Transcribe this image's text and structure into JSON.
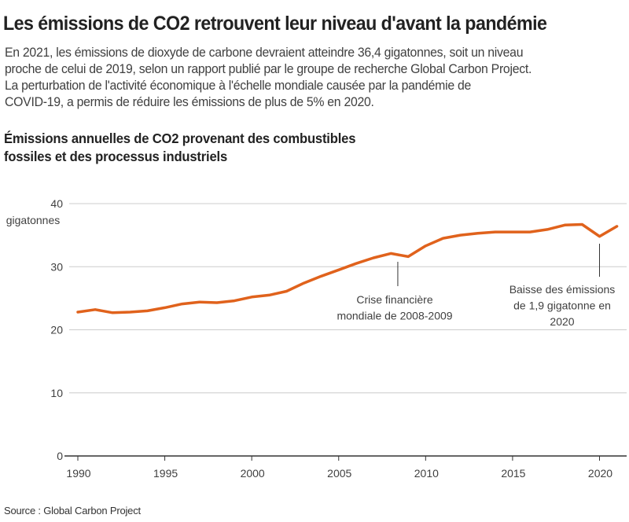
{
  "header": {
    "title": "Les émissions de CO2 retrouvent leur niveau d'avant la pandémie",
    "subtitle_lines": [
      "En 2021, les émissions de dioxyde de carbone devraient atteindre 36,4 gigatonnes, soit un niveau",
      "proche de celui de 2019, selon un rapport publié par le groupe de recherche Global Carbon Project.",
      "La perturbation de l'activité économique à l'échelle mondiale causée par la pandémie de",
      "COVID-19, a permis de réduire les émissions de plus de 5% en 2020."
    ]
  },
  "footer": {
    "source": "Source : Global Carbon Project"
  },
  "colors": {
    "line": "#e0621c",
    "grid": "#cccccc",
    "axis": "#333333",
    "text": "#404040"
  },
  "chart_data": {
    "type": "line",
    "title_lines": [
      "Émissions annuelles  de CO2 provenant des combustibles",
      "fossiles et des processus industriels"
    ],
    "xlabel": "",
    "ylabel": "gigatonnes",
    "xlim": [
      1990,
      2021
    ],
    "ylim": [
      0,
      40
    ],
    "yticks": [
      0,
      10,
      20,
      30,
      40
    ],
    "ytick_labels": [
      "0",
      "10",
      "20",
      "30",
      "40"
    ],
    "xticks": [
      1990,
      1995,
      2000,
      2005,
      2010,
      2015,
      2020
    ],
    "xtick_labels": [
      "1990",
      "1995",
      "2000",
      "2005",
      "2010",
      "2015",
      "2020"
    ],
    "grid": "horizontal",
    "legend": "none",
    "series": [
      {
        "name": "Émissions de CO2 (gigatonnes)",
        "x": [
          1990,
          1991,
          1992,
          1993,
          1994,
          1995,
          1996,
          1997,
          1998,
          1999,
          2000,
          2001,
          2002,
          2003,
          2004,
          2005,
          2006,
          2007,
          2008,
          2009,
          2010,
          2011,
          2012,
          2013,
          2014,
          2015,
          2016,
          2017,
          2018,
          2019,
          2020,
          2021
        ],
        "values": [
          22.8,
          23.2,
          22.7,
          22.8,
          23.0,
          23.5,
          24.1,
          24.4,
          24.3,
          24.6,
          25.2,
          25.5,
          26.1,
          27.4,
          28.5,
          29.5,
          30.5,
          31.4,
          32.1,
          31.6,
          33.3,
          34.5,
          35.0,
          35.3,
          35.5,
          35.5,
          35.5,
          35.9,
          36.6,
          36.7,
          34.8,
          36.4
        ]
      }
    ],
    "annotations": [
      {
        "x": 2008.4,
        "lines": [
          "Crise financière",
          "mondiale de 2008-2009"
        ]
      },
      {
        "x": 2020,
        "lines": [
          "Baisse des émissions",
          "de 1,9 gigatonne en",
          "2020"
        ]
      }
    ]
  }
}
